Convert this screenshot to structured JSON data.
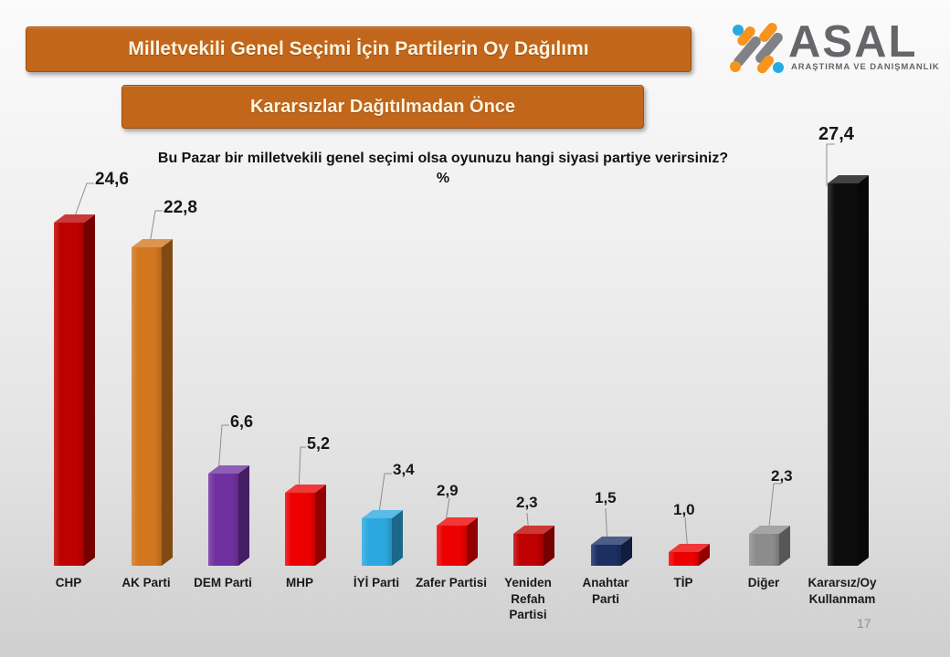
{
  "header": {
    "title": "Milletvekili Genel Seçimi İçin Partilerin Oy Dağılımı",
    "subtitle": "Kararsızlar Dağıtılmadan Önce",
    "banner_color": "#C2661B",
    "banner_text_color": "#FDF4DE"
  },
  "logo": {
    "brand": "ASAL",
    "tagline": "ARAŞTIRMA VE DANIŞMANLIK",
    "colors": {
      "gray": "#6D6E71",
      "orange": "#F7941D",
      "blue": "#27AAE1"
    }
  },
  "question": {
    "text": "Bu Pazar bir milletvekili genel seçimi olsa oyunuzu hangi siyasi partiye verirsiniz?",
    "unit": "%"
  },
  "page": {
    "number": "17"
  },
  "chart_data": {
    "type": "bar",
    "title": "Bu Pazar bir milletvekili genel seçimi olsa oyunuzu hangi siyasi partiye verirsiniz?",
    "subtitle": "Kararsızlar Dağıtılmadan Önce",
    "xlabel": "",
    "ylabel": "%",
    "ylim": [
      0,
      30
    ],
    "grid": false,
    "legend": "none",
    "decimal_separator": ",",
    "categories": [
      "CHP",
      "AK Parti",
      "DEM Parti",
      "MHP",
      "İYİ Parti",
      "Zafer Partisi",
      "Yeniden Refah Partisi",
      "Anahtar Parti",
      "TİP",
      "Diğer",
      "Kararsız/Oy Kullanmam"
    ],
    "categories_display": [
      "CHP",
      "AK Parti",
      "DEM Parti",
      "MHP",
      "İYİ Parti",
      "Zafer Partisi",
      "Yeniden\nRefah\nPartisi",
      "Anahtar\nParti",
      "TİP",
      "Diğer",
      "Kararsız/Oy\nKullanmam"
    ],
    "values": [
      24.6,
      22.8,
      6.6,
      5.2,
      3.4,
      2.9,
      2.3,
      1.5,
      1.0,
      2.3,
      27.4
    ],
    "value_labels": [
      "24,6",
      "22,8",
      "6,6",
      "5,2",
      "3,4",
      "2,9",
      "2,3",
      "1,5",
      "1,0",
      "2,3",
      "27,4"
    ],
    "bar_colors": [
      "#BE0000",
      "#D2771E",
      "#7030A0",
      "#EC0000",
      "#2BA8DF",
      "#EC0000",
      "#BE0000",
      "#1B2F63",
      "#EC0000",
      "#8C8C8C",
      "#0D0D0D"
    ]
  }
}
